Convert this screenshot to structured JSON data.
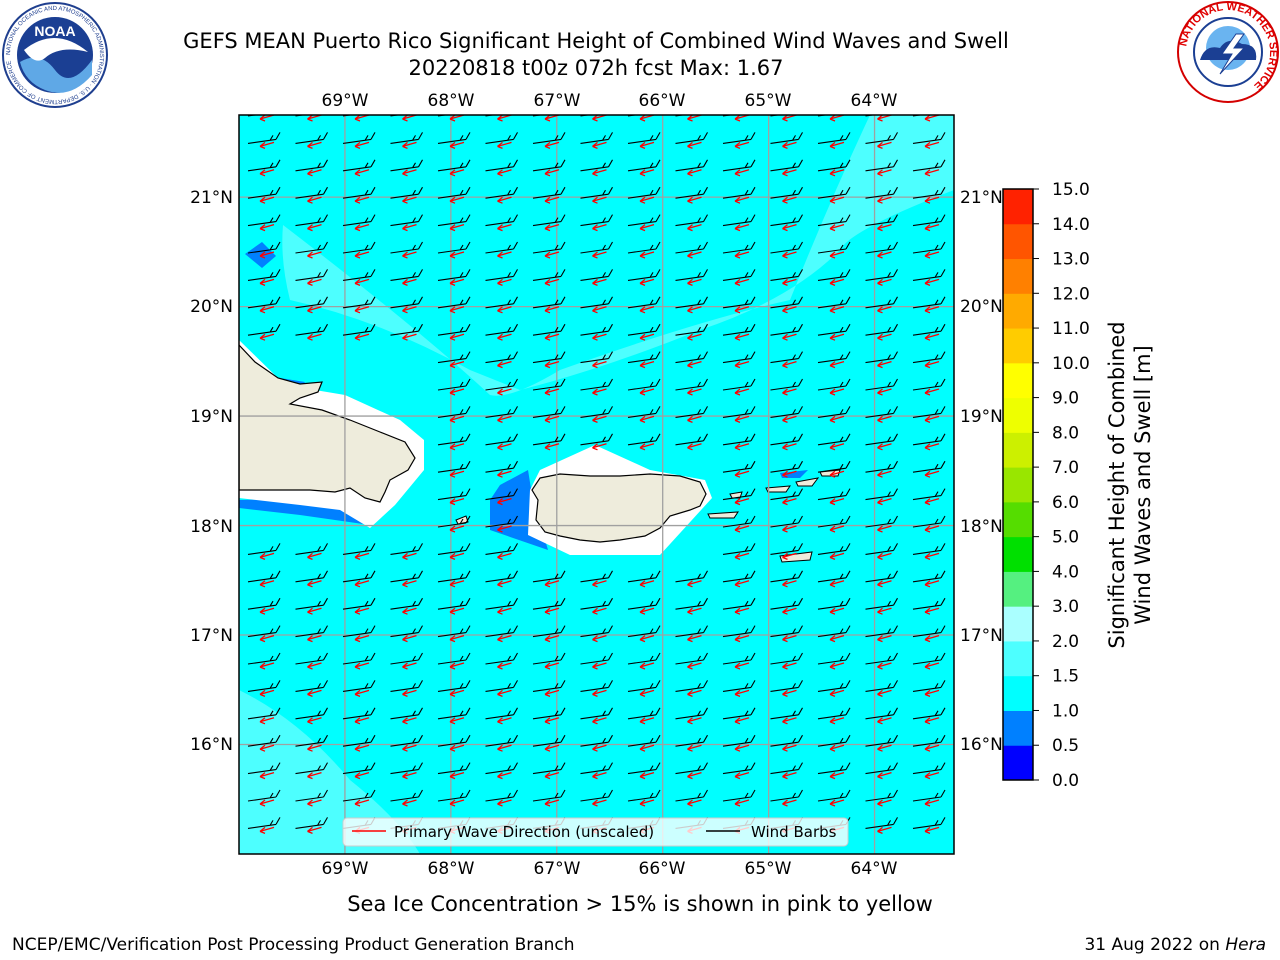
{
  "header": {
    "title_line1": "GEFS MEAN Puerto Rico Significant Height of Combined Wind Waves and Swell",
    "title_line2": "20220818 t00z 072h fcst   Max: 1.67"
  },
  "logos": {
    "left": {
      "text": "NOAA",
      "ring_text": "NATIONAL OCEANIC AND ATMOSPHERIC ADMINISTRATION · U.S. DEPARTMENT OF COMMERCE"
    },
    "right": {
      "ring_text": "NATIONAL WEATHER SERVICE"
    }
  },
  "map": {
    "lon_labels": [
      "69°W",
      "68°W",
      "67°W",
      "66°W",
      "65°W",
      "64°W"
    ],
    "lat_labels": [
      "21°N",
      "20°N",
      "19°N",
      "18°N",
      "17°N",
      "16°N"
    ],
    "lon_range": [
      -70.0,
      -63.25
    ],
    "lat_range": [
      15.0,
      21.75
    ],
    "ocean_color": "#00ffff",
    "land_color": "#eeecdc",
    "grid": true
  },
  "legend": {
    "wave_label": "Primary Wave Direction (unscaled)",
    "barb_label": "Wind Barbs",
    "wave_color": "#ff0000",
    "barb_color": "#000000"
  },
  "colorbar": {
    "label_line1": "Significant Height of Combined",
    "label_line2": "Wind Waves and Swell [m]",
    "ticks": [
      "0.0",
      "0.5",
      "1.0",
      "1.5",
      "2.0",
      "3.0",
      "4.0",
      "5.0",
      "6.0",
      "7.0",
      "8.0",
      "9.0",
      "10.0",
      "11.0",
      "12.0",
      "13.0",
      "14.0",
      "15.0"
    ],
    "colors": [
      "#0000ff",
      "#0080ff",
      "#00ffff",
      "#4dffff",
      "#aaffff",
      "#55f080",
      "#00e000",
      "#55dd00",
      "#99e600",
      "#ccf000",
      "#eeff00",
      "#ffff00",
      "#ffcc00",
      "#ffaa00",
      "#ff8000",
      "#ff5500",
      "#ff2200"
    ]
  },
  "caption": "Sea Ice Concentration > 15% is shown in pink to yellow",
  "footer": {
    "left": "NCEP/EMC/Verification Post Processing Product Generation Branch",
    "right_date": "31 Aug 2022 on ",
    "right_host": "Hera"
  },
  "chart_data": {
    "type": "heatmap",
    "variable": "Significant Height of Combined Wind Waves and Swell [m]",
    "max_value": 1.67,
    "levels": [
      0.0,
      0.5,
      1.0,
      1.5,
      2.0,
      3.0,
      4.0,
      5.0,
      6.0,
      7.0,
      8.0,
      9.0,
      10.0,
      11.0,
      12.0,
      13.0,
      14.0,
      15.0
    ],
    "dominant_level": "1.0-1.5",
    "secondary_level": "1.5-2.0",
    "wave_direction": "from east-northeast",
    "wind_barbs": "easterly, ~10-15 kt"
  }
}
